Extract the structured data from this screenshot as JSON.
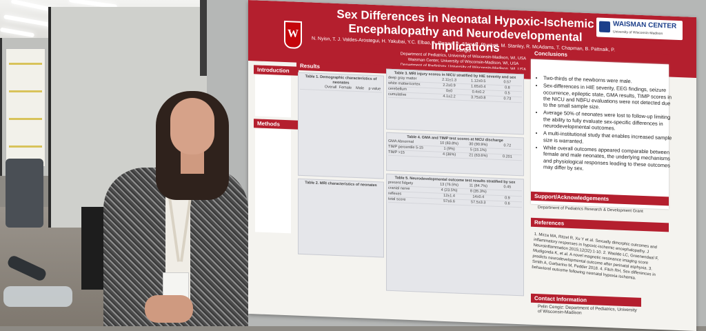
{
  "poster": {
    "title": "Sex Differences in Neonatal Hypoxic-Ischemic Encephalopathy and Neurodevelopmental Implications",
    "authors": "N. Nyisn, T. J. Valdes-Arostegui, H. Yakubai, Y.C. Elbao, A. Ragavi, E. Allen, B. Plunkett, M. Stanley, R. McAdams, T. Chapman, B. Pattnaik, P. Cengiz",
    "affiliations": [
      "Department of Pediatrics, University of Wisconsin-Madison, WI, USA",
      "Waisman Center, University of Wisconsin-Madison, WI, USA",
      "Department of Radiology, University of Wisconsin-Madison, WI, USA"
    ],
    "logo_letter": "W",
    "center_name": "WAISMAN CENTER",
    "center_subtitle": "University of Wisconsin-Madison",
    "sections": {
      "introduction": "Introduction",
      "methods": "Methods",
      "results": "Results",
      "conclusions": "Conclusions",
      "support": "Support/Acknowledgements",
      "references": "References",
      "contact": "Contact Information"
    },
    "tables": {
      "t1": "Table 1. Demographic characteristics of neonates",
      "t2": "Table 2. MRI characteristics of neonates",
      "t3": "Table 3. MRI injury scores in NICU stratified by HIE severity and sex",
      "t4": "Table 4. GMA and TIMP test scores at NICU discharge",
      "t5": "Table 5. Neurodevelopmental outcome test results stratified by sex"
    },
    "table_header": [
      "",
      "Overall",
      "Female",
      "Male",
      "p value"
    ],
    "table3_rows": [
      [
        "deep gray matter",
        "2.11±1.3",
        "1.12±0.5",
        "0.57"
      ],
      [
        "white matter/cortex",
        "2.2±0.9",
        "1.65±0.4",
        "0.8"
      ],
      [
        "cerebellum",
        "0±0",
        "0.4±0.2",
        "0.5"
      ],
      [
        "cumulative",
        "4.1±2.2",
        "3.75±0.8",
        "0.73"
      ]
    ],
    "table4_rows": [
      [
        "GMA Abnormal",
        "10 (83.8%)",
        "30 (90.9%)",
        "0.72"
      ],
      [
        "TIMP percentile 5-15",
        "1 (9%)",
        "5 (15.1%)",
        ""
      ],
      [
        "TIMP >15",
        "4 (36%)",
        "21 (63.6%)",
        "0.201"
      ]
    ],
    "table5_rows": [
      [
        "present fidgety",
        "13 (76.5%)",
        "11 (84.7%)",
        "0.45"
      ],
      [
        "cranial nerve",
        "4 (23.5%)",
        "8 (35.3%)",
        ""
      ],
      [
        "reflexes",
        "12±1.4",
        "14±0.4",
        "0.9"
      ],
      [
        "total score",
        "57±6.6",
        "57.5±3.3",
        "0.6"
      ]
    ],
    "conclusions": [
      "Two-thirds of the newborns were male.",
      "Sex-differences in HIE severity, EEG findings, seizure occurrence, epileptic state, GMA results, TIMP scores in the NICU and NBFU evaluations were not detected due to the small sample size.",
      "Average 50% of neonates were lost to follow-up limiting the ability to fully evaluate sex-specific differences in neurodevelopmental outcomes.",
      "A multi-institutional study that enables increased sample size is warranted.",
      "While overall outcomes appeared comparable between female and male neonates, the underlying mechanisms and physiological responses leading to these outcomes may differ by sex."
    ],
    "support_text": "Department of Pediatrics Research & Development Grant",
    "references_text": "1. Mirza MA, Ritzel R, Xu Y et al. Sexually dimorphic outcomes and inflammatory responses in hypoxic-ischemic encephalopathy. J Neuroinflammation 2015;12(32):1-10. 2. Waelde LC, Groenendaal F, Mudigonda K, et al. A novel magnetic resonance imaging score predicts neurodevelopmental outcome after perinatal asphyxia. 3. Smith A, Garbarino M, Pedder 2018. 4. Fitch RH, Sex differences in behavioral outcome following neonatal hypoxia ischemia.",
    "contact_text": "Pelin Cengiz: Department of Pediatrics, University of Wisconsin-Madison"
  }
}
